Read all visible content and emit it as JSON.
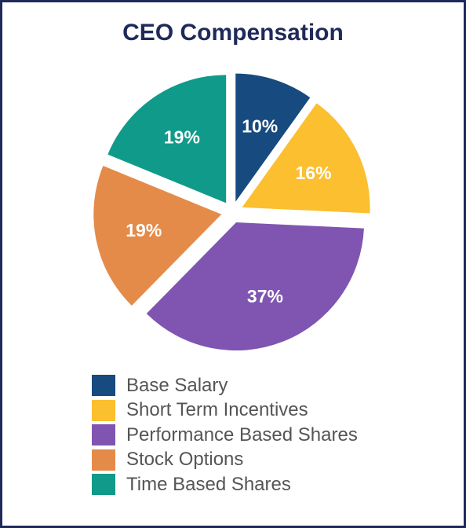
{
  "chart_data": {
    "type": "pie",
    "title": "CEO Compensation",
    "slices": [
      {
        "name": "Base Salary",
        "value": 10,
        "label": "10%",
        "color": "#174a7e"
      },
      {
        "name": "Short Term Incentives",
        "value": 16,
        "label": "16%",
        "color": "#fbbf2f"
      },
      {
        "name": "Performance Based Shares",
        "value": 37,
        "label": "37%",
        "color": "#7f55b1"
      },
      {
        "name": "Stock Options",
        "value": 19,
        "label": "19%",
        "color": "#e48b4a"
      },
      {
        "name": "Time Based Shares",
        "value": 19,
        "label": "19%",
        "color": "#109a8a"
      }
    ],
    "exploded": true,
    "legend": "bottom"
  },
  "colors": {
    "title": "#1f2a5a",
    "border": "#1f2a5a",
    "legend_text": "#555555"
  }
}
